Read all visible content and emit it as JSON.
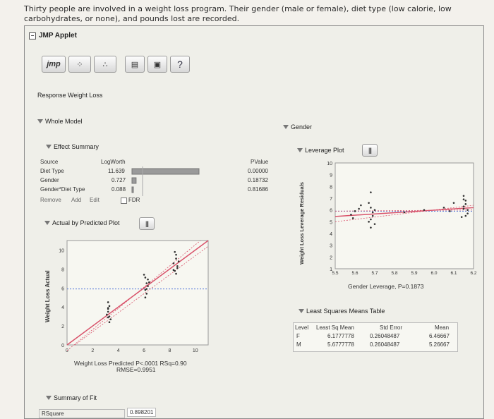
{
  "question": "Thirty people are involved in a weight loss program. Their gender (male or female), diet type (low calorie, low carbohydrates, or none), and pounds lost are recorded.",
  "applet": {
    "title": "JMP Applet",
    "toolbar": {
      "jmp_label": "jmp",
      "help_label": "?"
    },
    "report_title": "Response Weight Loss",
    "whole_model": "Whole Model",
    "effect_summary": {
      "title": "Effect Summary",
      "headers": {
        "source": "Source",
        "logworth": "LogWorth",
        "pvalue": "PValue"
      },
      "rows": [
        {
          "source": "Diet Type",
          "logworth": "11.639",
          "pvalue": "0.00000",
          "bar": 1.0
        },
        {
          "source": "Gender",
          "logworth": "0.727",
          "pvalue": "0.18732",
          "bar": 0.062
        },
        {
          "source": "Gender*Diet Type",
          "logworth": "0.088",
          "pvalue": "0.81686",
          "bar": 0.008
        }
      ],
      "buttons": {
        "remove": "Remove",
        "add": "Add",
        "edit": "Edit",
        "fdr": "FDR"
      }
    },
    "actual_by_predicted": {
      "title": "Actual by Predicted Plot",
      "ylabel": "Weight Loss Actual",
      "caption1": "Weight Loss Predicted P<.0001 RSq=0.90",
      "caption2": "RMSE=0.9951",
      "y_ticks": [
        "10",
        "8",
        "6",
        "4",
        "2",
        "0"
      ],
      "x_ticks": [
        "0",
        "2",
        "4",
        "6",
        "8",
        "10"
      ]
    },
    "summary_of_fit": {
      "title": "Summary of Fit",
      "rsquare_label": "RSquare",
      "rsquare_value": "0.898201"
    },
    "gender": {
      "title": "Gender",
      "leverage_plot": {
        "title": "Leverage Plot",
        "ylabel": "Weight Loss Leverage Residuals",
        "xlabel": "Gender Leverage, P=0.1873",
        "y_ticks": [
          "10",
          "9",
          "8",
          "7",
          "6",
          "5",
          "4",
          "3",
          "2",
          "1"
        ],
        "x_ticks": [
          "5.5",
          "5.6",
          "5.7",
          "5.8",
          "5.9",
          "6.0",
          "6.1",
          "6.2"
        ]
      },
      "least_squares": {
        "title": "Least Squares Means Table",
        "headers": {
          "level": "Level",
          "lsmean": "Least Sq Mean",
          "stderr": "Std Error",
          "mean": "Mean"
        },
        "rows": [
          {
            "level": "F",
            "lsmean": "6.1777778",
            "stderr": "0.26048487",
            "mean": "6.46667"
          },
          {
            "level": "M",
            "lsmean": "5.6777778",
            "stderr": "0.26048487",
            "mean": "5.26667"
          }
        ]
      }
    }
  },
  "colors": {
    "fit_line": "#d9536b",
    "mean_line": "#4a6fd6",
    "points": "#333333"
  }
}
